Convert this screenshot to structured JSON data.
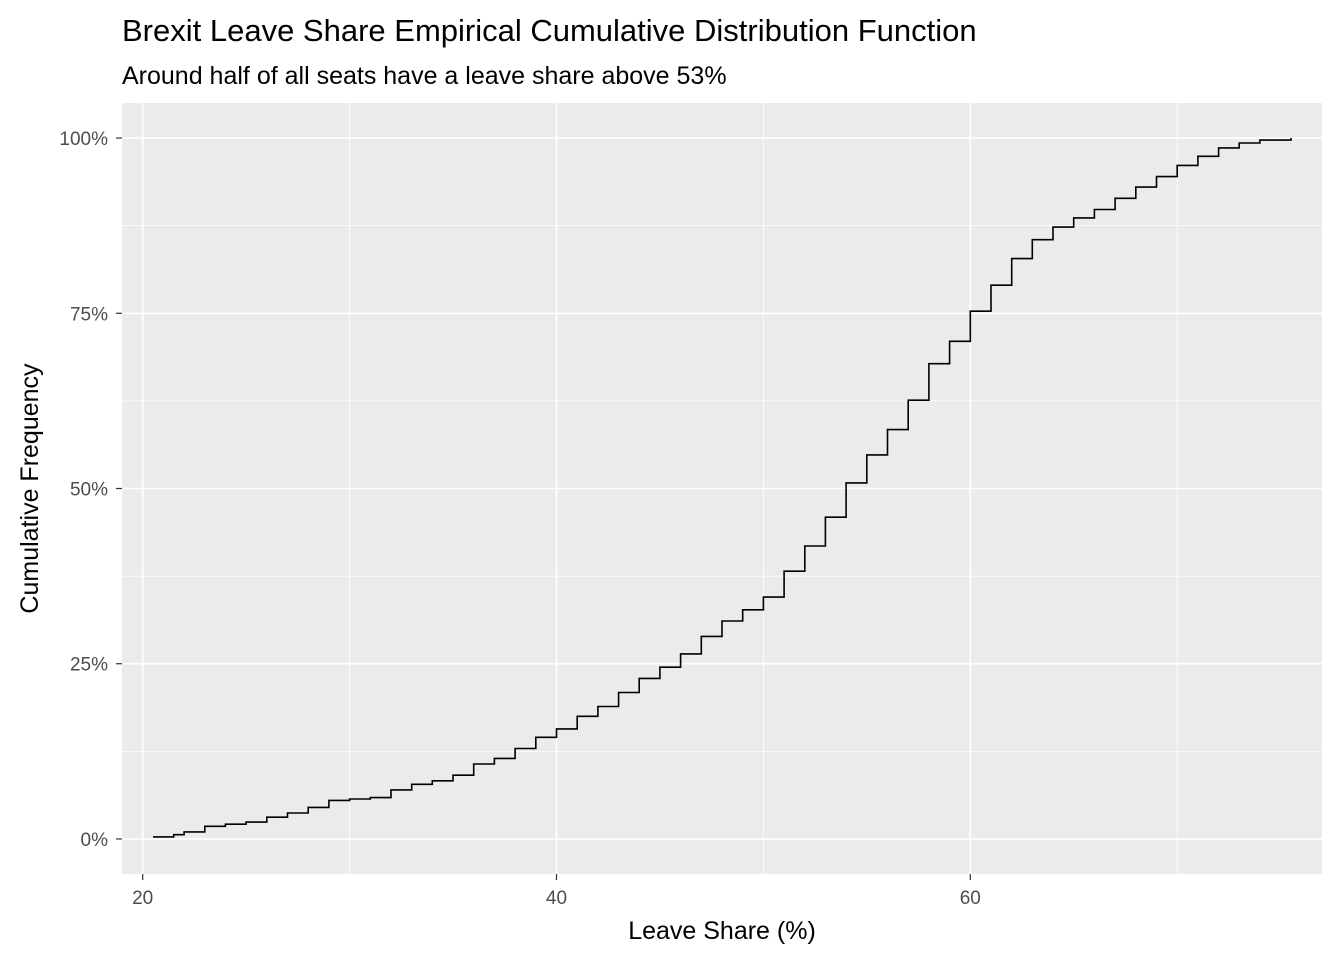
{
  "chart_data": {
    "type": "line",
    "title": "Brexit Leave Share Empirical Cumulative Distribution Function",
    "subtitle": "Around half of all seats have a leave share above 53%",
    "xlabel": "Leave Share (%)",
    "ylabel": "Cumulative Frequency",
    "xlim": [
      19,
      77
    ],
    "ylim": [
      -0.05,
      1.05
    ],
    "x_ticks": [
      20,
      40,
      60
    ],
    "x_tick_labels": [
      "20",
      "40",
      "60"
    ],
    "x_minor_ticks": [
      30,
      50,
      70
    ],
    "y_ticks": [
      0,
      0.25,
      0.5,
      0.75,
      1.0
    ],
    "y_tick_labels": [
      "0%",
      "25%",
      "50%",
      "75%",
      "100%"
    ],
    "y_minor_ticks": [
      0.125,
      0.375,
      0.625,
      0.875
    ],
    "grid": true,
    "series": [
      {
        "step": true,
        "x": [
          20.5,
          21.5,
          22.0,
          23.0,
          24.0,
          25.0,
          26.0,
          27.0,
          28.0,
          29.0,
          30.0,
          31.0,
          32.0,
          33.0,
          34.0,
          35.0,
          36.0,
          37.0,
          38.0,
          39.0,
          40.0,
          41.0,
          42.0,
          43.0,
          44.0,
          45.0,
          46.0,
          47.0,
          48.0,
          49.0,
          50.0,
          51.0,
          52.0,
          53.0,
          54.0,
          55.0,
          56.0,
          57.0,
          58.0,
          59.0,
          60.0,
          61.0,
          62.0,
          63.0,
          64.0,
          65.0,
          66.0,
          67.0,
          68.0,
          69.0,
          70.0,
          71.0,
          72.0,
          73.0,
          74.0,
          75.5
        ],
        "y": [
          0.003,
          0.006,
          0.01,
          0.018,
          0.021,
          0.024,
          0.031,
          0.037,
          0.045,
          0.055,
          0.057,
          0.059,
          0.07,
          0.078,
          0.083,
          0.091,
          0.107,
          0.115,
          0.129,
          0.145,
          0.157,
          0.175,
          0.189,
          0.209,
          0.229,
          0.245,
          0.264,
          0.289,
          0.311,
          0.327,
          0.345,
          0.382,
          0.418,
          0.459,
          0.508,
          0.548,
          0.584,
          0.626,
          0.678,
          0.71,
          0.753,
          0.79,
          0.828,
          0.855,
          0.873,
          0.886,
          0.898,
          0.914,
          0.93,
          0.945,
          0.961,
          0.974,
          0.986,
          0.993,
          0.997,
          1.0
        ]
      }
    ]
  }
}
